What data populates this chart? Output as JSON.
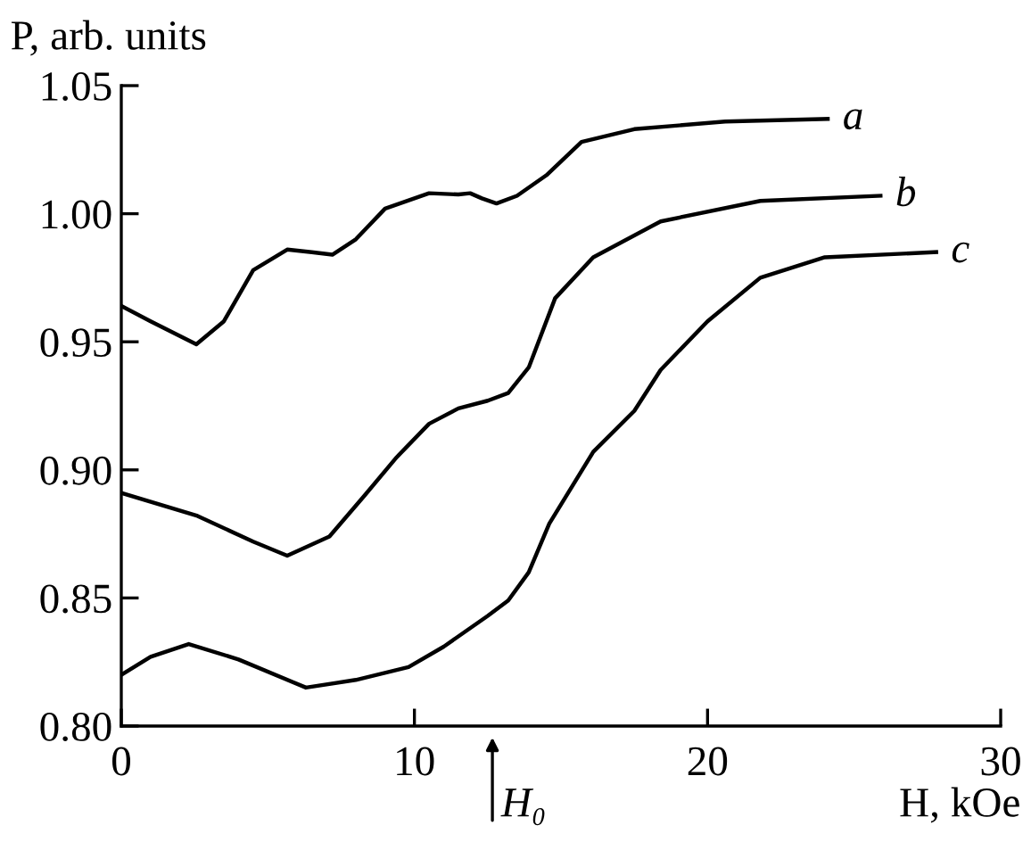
{
  "chart_data": {
    "type": "line",
    "xlabel": "H, kOe",
    "ylabel": "P, arb. units",
    "xlim": [
      0,
      30
    ],
    "xticks": [
      0,
      10,
      20,
      30
    ],
    "ylim": [
      0.8,
      1.05
    ],
    "yticks": [
      {
        "value": 0.8,
        "label": "0.80"
      },
      {
        "value": 0.85,
        "label": "0.85"
      },
      {
        "value": 0.9,
        "label": "0.90"
      },
      {
        "value": 0.95,
        "label": "0.95"
      },
      {
        "value": 1.0,
        "label": "1.00"
      },
      {
        "value": 1.05,
        "label": "1.05"
      }
    ],
    "grid": false,
    "legend": false,
    "marker": "none",
    "line_style": "solid",
    "series": [
      {
        "name": "a",
        "color": "#000000",
        "x": [
          0,
          1,
          2.56,
          3.5,
          4.5,
          5.66,
          6.5,
          7.2,
          8,
          9,
          10.5,
          11.5,
          11.9,
          12.3,
          12.8,
          13.5,
          14.5,
          15.7,
          17.5,
          20.6,
          24.1
        ],
        "values": [
          0.964,
          0.958,
          0.949,
          0.958,
          0.978,
          0.986,
          0.985,
          0.984,
          0.99,
          1.002,
          1.008,
          1.0075,
          1.008,
          1.006,
          1.004,
          1.007,
          1.015,
          1.028,
          1.033,
          1.036,
          1.037
        ]
      },
      {
        "name": "b",
        "color": "#000000",
        "x": [
          0,
          2.6,
          4.5,
          5.66,
          7.1,
          8.3,
          9.4,
          10.5,
          11.5,
          12.5,
          13.2,
          13.9,
          14.8,
          16.1,
          18.4,
          21.8,
          25.9
        ],
        "values": [
          0.891,
          0.882,
          0.872,
          0.8665,
          0.874,
          0.89,
          0.905,
          0.918,
          0.924,
          0.927,
          0.93,
          0.94,
          0.967,
          0.983,
          0.997,
          1.005,
          1.007
        ]
      },
      {
        "name": "c",
        "color": "#000000",
        "x": [
          0,
          1,
          2.3,
          4,
          6.3,
          8,
          9.8,
          11,
          12.5,
          13.2,
          13.9,
          14.6,
          16.1,
          17.5,
          18.4,
          20,
          21.8,
          24,
          27.8
        ],
        "values": [
          0.82,
          0.827,
          0.832,
          0.826,
          0.815,
          0.818,
          0.823,
          0.831,
          0.843,
          0.849,
          0.86,
          0.879,
          0.907,
          0.923,
          0.939,
          0.958,
          0.975,
          0.983,
          0.985
        ]
      }
    ],
    "annotations": [
      "H₀"
    ]
  }
}
